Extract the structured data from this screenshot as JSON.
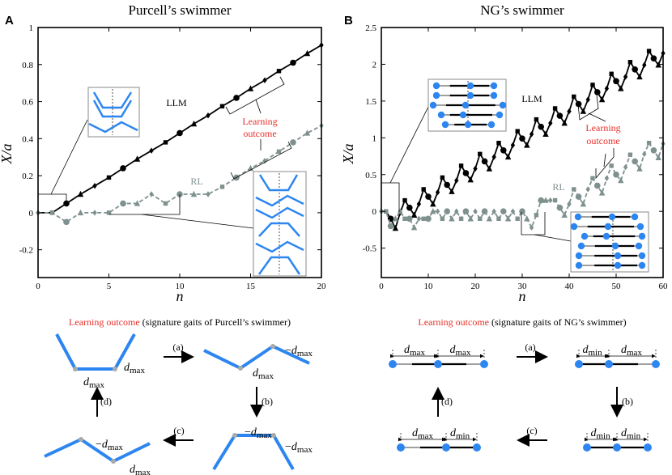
{
  "colors": {
    "llm": "#000000",
    "rl": "#7f918f",
    "accent_red": "#e8302a",
    "swimmer_blue": "#2d86f0",
    "joint_gray": "#aaaaaa"
  },
  "panels": [
    {
      "letter": "A",
      "title": "Purcell’s swimmer",
      "ylabel": "X/a",
      "xlabel": "n",
      "llm_label": "LLM",
      "rl_label": "RL",
      "outcome_line1": "Learning",
      "outcome_line2": "outcome"
    },
    {
      "letter": "B",
      "title": "NG’s swimmer",
      "ylabel": "X/a",
      "xlabel": "n",
      "llm_label": "LLM",
      "rl_label": "RL",
      "outcome_line1": "Learning",
      "outcome_line2": "outcome"
    }
  ],
  "chart_data": [
    {
      "type": "line",
      "title": "Purcell’s swimmer",
      "xlabel": "n",
      "ylabel": "X/a",
      "xlim": [
        0,
        20
      ],
      "ylim": [
        -0.35,
        1
      ],
      "xticks": [
        0,
        5,
        10,
        15,
        20
      ],
      "yticks": [
        -0.2,
        0,
        0.2,
        0.4,
        0.6,
        0.8,
        1
      ],
      "ytick_labels": [
        "-0.2",
        "0",
        "0.2",
        "0.4",
        "0.6",
        "0.8",
        "1"
      ],
      "grid": false,
      "series": [
        {
          "name": "LLM",
          "style": "solid",
          "color": "#000000",
          "x": [
            0,
            1,
            2,
            3,
            4,
            5,
            6,
            7,
            8,
            9,
            10,
            11,
            12,
            13,
            14,
            15,
            16,
            17,
            18,
            19,
            20
          ],
          "y": [
            0,
            0,
            0.05,
            0.1,
            0.145,
            0.19,
            0.24,
            0.29,
            0.335,
            0.38,
            0.43,
            0.48,
            0.525,
            0.575,
            0.62,
            0.67,
            0.715,
            0.765,
            0.81,
            0.86,
            0.905
          ]
        },
        {
          "name": "RL",
          "style": "dashed",
          "color": "#7f918f",
          "x": [
            0,
            1,
            2,
            3,
            4,
            5,
            6,
            7,
            8,
            9,
            10,
            11,
            12,
            13,
            14,
            15,
            16,
            17,
            18,
            19,
            20
          ],
          "y": [
            0,
            0,
            -0.05,
            0,
            0,
            0,
            0.05,
            0.05,
            0.1,
            0.05,
            0.1,
            0.1,
            0.1,
            0.14,
            0.19,
            0.24,
            0.28,
            0.33,
            0.38,
            0.43,
            0.47
          ]
        }
      ]
    },
    {
      "type": "line",
      "title": "NG’s swimmer",
      "xlabel": "n",
      "ylabel": "X/a",
      "xlim": [
        0,
        60
      ],
      "ylim": [
        -0.9,
        2.5
      ],
      "xticks": [
        0,
        10,
        20,
        30,
        40,
        50,
        60
      ],
      "yticks": [
        -0.5,
        0,
        0.5,
        1,
        1.5,
        2,
        2.5
      ],
      "ytick_labels": [
        "-0.5",
        "0",
        "0.5",
        "1",
        "1.5",
        "2",
        "2.5"
      ],
      "grid": false,
      "series": [
        {
          "name": "LLM",
          "style": "solid",
          "color": "#000000",
          "x": [
            0,
            1,
            2,
            3,
            4,
            5,
            6,
            7,
            8,
            9,
            10,
            11,
            12,
            13,
            14,
            15,
            16,
            17,
            18,
            19,
            20,
            21,
            22,
            23,
            24,
            25,
            26,
            27,
            28,
            29,
            30,
            31,
            32,
            33,
            34,
            35,
            36,
            37,
            38,
            39,
            40,
            41,
            42,
            43,
            44,
            45,
            46,
            47,
            48,
            49,
            50,
            51,
            52,
            53,
            54,
            55,
            56,
            57,
            58,
            59,
            60
          ],
          "y": [
            0,
            0,
            -0.1,
            -0.23,
            -0.02,
            0.15,
            0.05,
            -0.05,
            0.1,
            0.3,
            0.2,
            0.1,
            0.26,
            0.46,
            0.36,
            0.27,
            0.42,
            0.62,
            0.52,
            0.43,
            0.58,
            0.78,
            0.68,
            0.58,
            0.74,
            0.93,
            0.83,
            0.74,
            0.9,
            1.09,
            0.99,
            0.9,
            1.05,
            1.25,
            1.15,
            1.05,
            1.2,
            1.4,
            1.3,
            1.2,
            1.36,
            1.56,
            1.46,
            1.36,
            1.52,
            1.72,
            1.62,
            1.52,
            1.67,
            1.87,
            1.77,
            1.67,
            1.83,
            2.03,
            1.93,
            1.83,
            1.99,
            2.18,
            2.08,
            1.99,
            2.15
          ]
        },
        {
          "name": "RL",
          "style": "dashed",
          "color": "#7f918f",
          "x": [
            0,
            1,
            2,
            3,
            4,
            5,
            6,
            7,
            8,
            9,
            10,
            11,
            12,
            13,
            14,
            15,
            16,
            17,
            18,
            19,
            20,
            21,
            22,
            23,
            24,
            25,
            26,
            27,
            28,
            29,
            30,
            31,
            32,
            33,
            34,
            35,
            36,
            37,
            38,
            39,
            40,
            41,
            42,
            43,
            44,
            45,
            46,
            47,
            48,
            49,
            50,
            51,
            52,
            53,
            54,
            55,
            56,
            57,
            58,
            59,
            60
          ],
          "y": [
            0,
            0,
            -0.2,
            -0.1,
            0,
            -0.1,
            -0.1,
            -0.22,
            -0.1,
            -0.1,
            -0.1,
            0,
            0,
            -0.1,
            0,
            -0.1,
            0,
            -0.1,
            0,
            -0.1,
            0,
            -0.1,
            0,
            -0.1,
            0,
            -0.1,
            0,
            -0.1,
            0,
            -0.1,
            0,
            -0.1,
            -0.22,
            -0.05,
            0.15,
            0.15,
            0.15,
            0.15,
            0.05,
            -0.05,
            0.1,
            0.3,
            0.2,
            0.1,
            0.3,
            0.45,
            0.35,
            0.25,
            0.45,
            0.62,
            0.5,
            0.42,
            0.6,
            0.77,
            0.68,
            0.58,
            0.78,
            0.93,
            0.83,
            0.73,
            0.92
          ]
        }
      ]
    }
  ],
  "gaits": {
    "purcell": {
      "caption_red": "Learning outcome",
      "caption_rest": " (signature gaits of Purcell’s swimmer)",
      "arrows": [
        "(a)",
        "(b)",
        "(c)",
        "(d)"
      ],
      "labels": [
        {
          "sign": "",
          "var": "d",
          "sub": "max"
        },
        {
          "sign": "",
          "var": "d",
          "sub": "max"
        },
        {
          "sign": "−",
          "var": "d",
          "sub": "max"
        },
        {
          "sign": "",
          "var": "d",
          "sub": "max"
        },
        {
          "sign": "−",
          "var": "d",
          "sub": "max"
        },
        {
          "sign": "−",
          "var": "d",
          "sub": "max"
        },
        {
          "sign": "−",
          "var": "d",
          "sub": "max"
        },
        {
          "sign": "",
          "var": "d",
          "sub": "max"
        }
      ]
    },
    "ng": {
      "caption_red": "Learning outcome",
      "caption_rest": " (signature gaits of NG’s swimmer)",
      "arrows": [
        "(a)",
        "(b)",
        "(c)",
        "(d)"
      ],
      "labels": [
        {
          "sign": "",
          "var": "d",
          "sub": "max"
        },
        {
          "sign": "",
          "var": "d",
          "sub": "max"
        },
        {
          "sign": "",
          "var": "d",
          "sub": "min"
        },
        {
          "sign": "",
          "var": "d",
          "sub": "max"
        },
        {
          "sign": "",
          "var": "d",
          "sub": "min"
        },
        {
          "sign": "",
          "var": "d",
          "sub": "min"
        },
        {
          "sign": "",
          "var": "d",
          "sub": "max"
        },
        {
          "sign": "",
          "var": "d",
          "sub": "min"
        }
      ]
    }
  }
}
